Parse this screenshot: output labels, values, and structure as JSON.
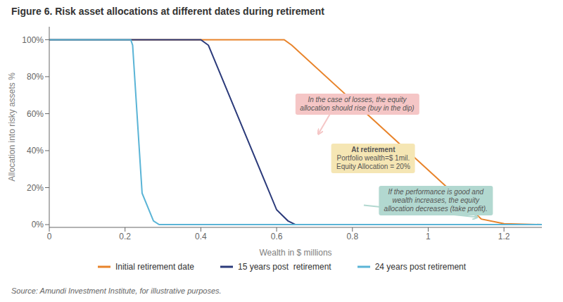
{
  "chart_data": {
    "type": "line",
    "title": "Figure 6. Risk asset allocations at different dates during retirement",
    "xlabel": "Wealth in $ millions",
    "ylabel": "Allocation into risky assets %",
    "series": [
      {
        "name": "Initial retirement date",
        "color": "#e8832a",
        "x": [
          0,
          0.62,
          0.64,
          1.12,
          1.14,
          1.2,
          1.3
        ],
        "values": [
          1.0,
          1.0,
          0.97,
          0.07,
          0.03,
          0.005,
          0.0
        ]
      },
      {
        "name": "15 years post  retirement",
        "color": "#2b3a7a",
        "x": [
          0,
          0.4,
          0.42,
          0.6,
          0.63,
          0.65,
          1.3
        ],
        "values": [
          1.0,
          1.0,
          0.97,
          0.08,
          0.02,
          0.0,
          0.0
        ]
      },
      {
        "name": "24 years post retirement",
        "color": "#5ab4d6",
        "x": [
          0,
          0.215,
          0.22,
          0.245,
          0.275,
          0.29,
          1.3
        ],
        "values": [
          1.0,
          1.0,
          0.97,
          0.17,
          0.02,
          0.0,
          0.0
        ]
      }
    ],
    "xlim": [
      0,
      1.3
    ],
    "ylim": [
      -0.015,
      1.07
    ],
    "xticks": [
      0,
      0.2,
      0.4,
      0.6,
      0.8,
      1,
      1.2
    ],
    "yticks": [
      {
        "value": 0,
        "label": "0%"
      },
      {
        "value": 0.2,
        "label": "20%"
      },
      {
        "value": 0.4,
        "label": "40%"
      },
      {
        "value": 0.6,
        "label": "60%"
      },
      {
        "value": 0.8,
        "label": "80%"
      },
      {
        "value": 1.0,
        "label": "100%"
      }
    ],
    "grid": false,
    "legend": "bottom",
    "annotations": [
      {
        "text": "In the case of losses, the equity\nallocation should rise (buy in the dip)",
        "color": "#f5c6c6"
      },
      {
        "text": "At retirement\nPortfolio wealth=$ 1mil.\nEquity Allocation = 20%",
        "color": "#f5e6b4"
      },
      {
        "text": "If the performance is good and\nwealth increases, the equity\nallocation decreases (take profit).",
        "color": "#b2d8d0"
      }
    ],
    "source": "Source: Amundi Investment Institute, for illustrative purposes."
  }
}
